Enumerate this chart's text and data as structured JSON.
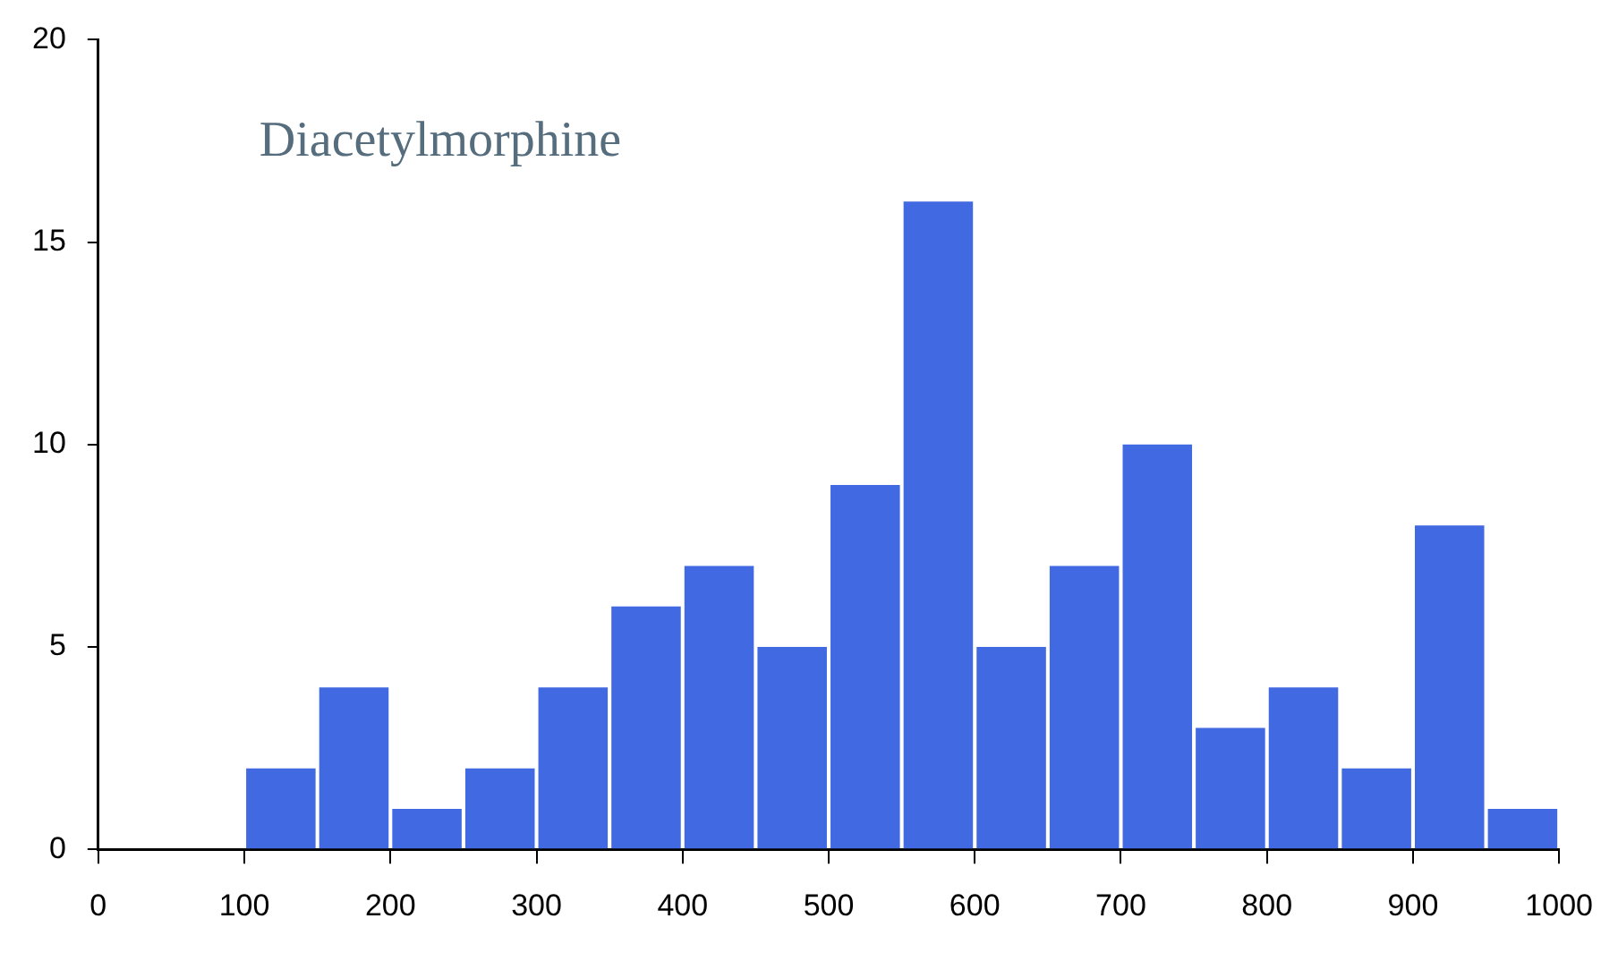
{
  "chart_data": {
    "type": "histogram",
    "title": "Diacetylmorphine",
    "bins": [
      100,
      150,
      200,
      250,
      300,
      350,
      400,
      450,
      500,
      550,
      600,
      650,
      700,
      750,
      800,
      850,
      900,
      950,
      1000
    ],
    "values": [
      2,
      4,
      1,
      2,
      4,
      6,
      7,
      5,
      9,
      16,
      5,
      7,
      10,
      3,
      4,
      2,
      8,
      1
    ],
    "color": "#4169e1",
    "xlim": [
      0,
      1000
    ],
    "xticks": [
      0,
      100,
      200,
      300,
      400,
      500,
      600,
      700,
      800,
      900,
      1000
    ],
    "ylim": [
      0,
      20
    ],
    "yticks": [
      0,
      5,
      10,
      15,
      20
    ],
    "grid": false,
    "legend": false
  }
}
